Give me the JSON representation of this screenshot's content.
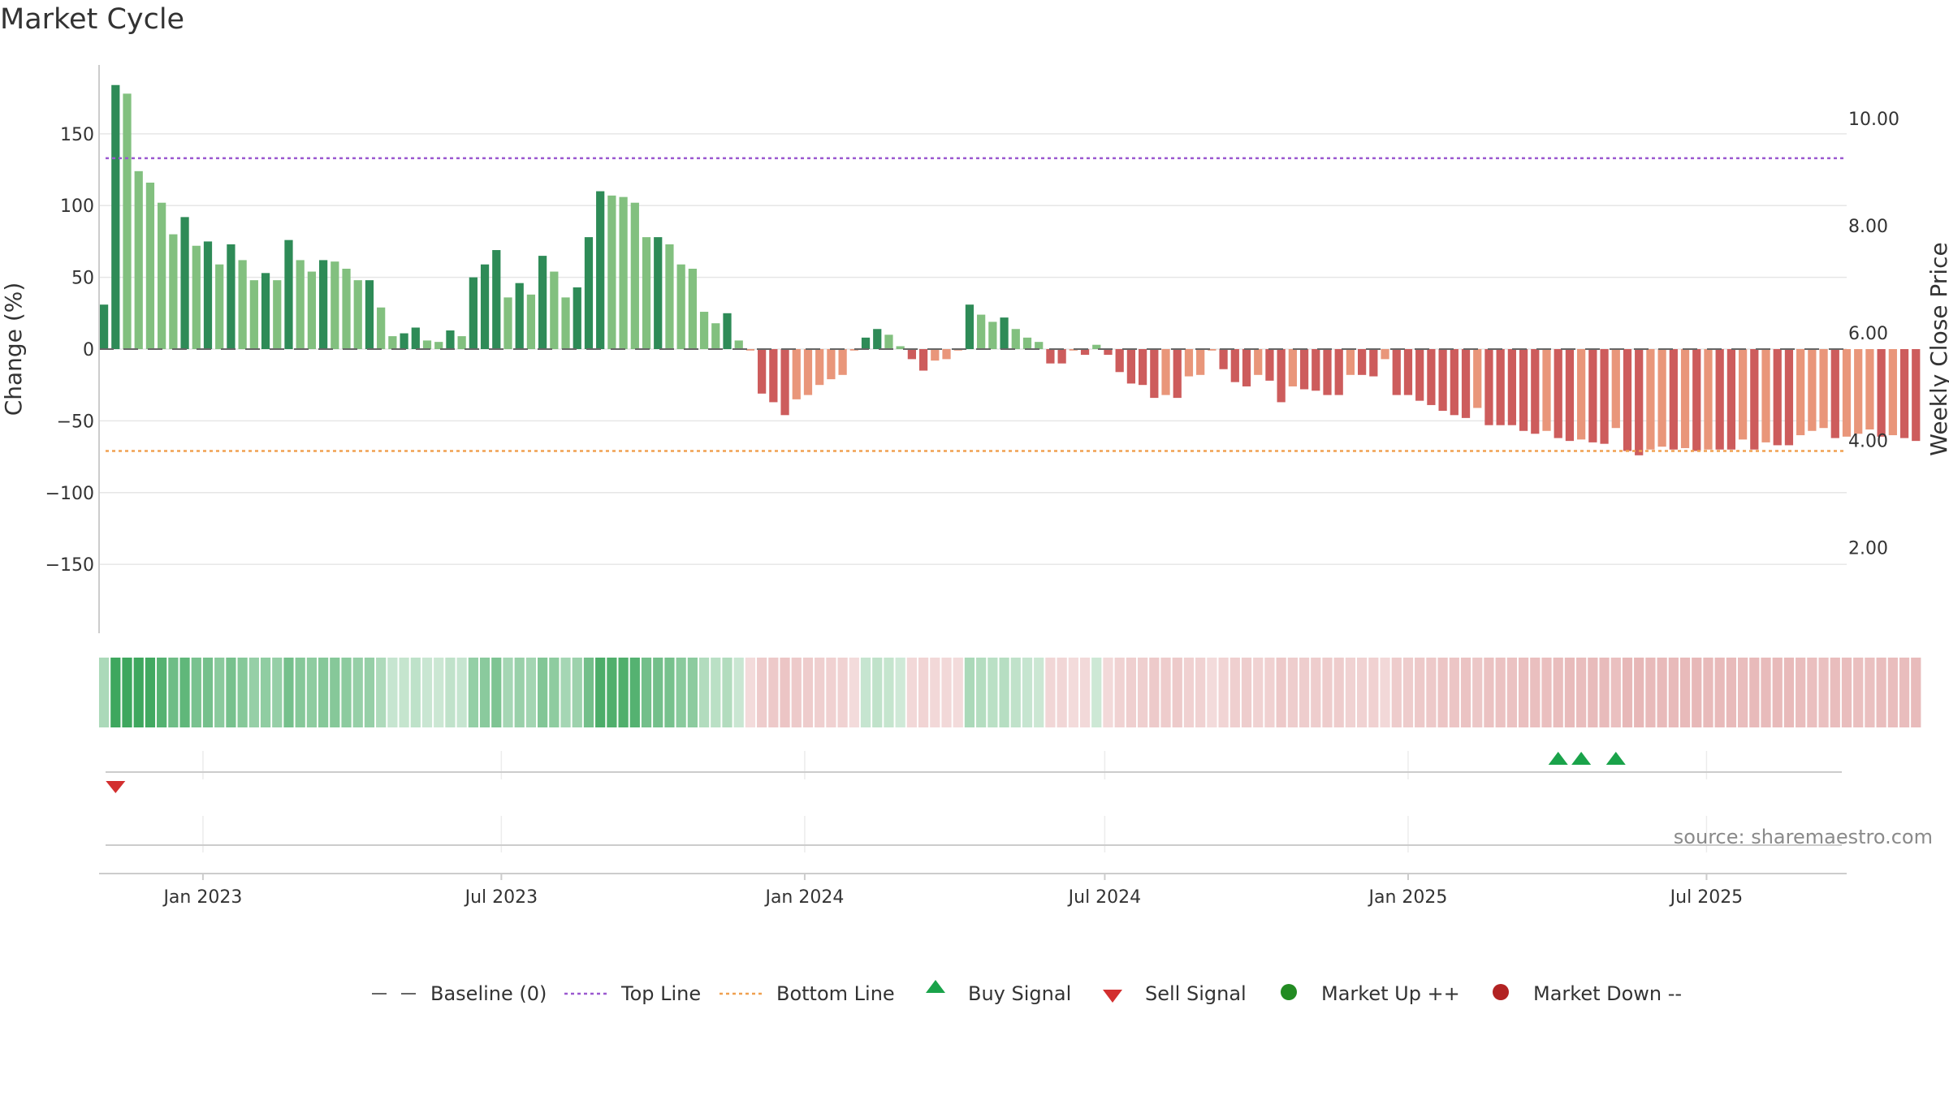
{
  "chart_data": {
    "type": "bar",
    "title": "Market Cycle",
    "ylabel_left": "Change (%)",
    "ylabel_right": "Weekly Close Price",
    "yticks_left": [
      "150",
      "100",
      "50",
      "0",
      "−50",
      "−100",
      "−150"
    ],
    "yticks_left_values": [
      150,
      100,
      50,
      0,
      -50,
      -100,
      -150
    ],
    "yticks_right": [
      "10.00",
      "8.00",
      "6.00",
      "4.00",
      "2.00"
    ],
    "yticks_right_values": [
      10,
      8,
      6,
      4,
      2
    ],
    "ylim_left": [
      -198,
      198
    ],
    "ylim_right": [
      0.4,
      11.0
    ],
    "xlim": [
      "2022-10-30",
      "2025-09-24"
    ],
    "xticks": [
      "Jan 2023",
      "Jul 2023",
      "Jan 2024",
      "Jul 2024",
      "Jan 2025",
      "Jul 2025"
    ],
    "xticks_dates": [
      "2023-01-01",
      "2023-07-01",
      "2024-01-01",
      "2024-07-01",
      "2025-01-01",
      "2025-07-01"
    ],
    "start_week": "2022-11-02",
    "weekly_change": [
      31,
      184,
      178,
      124,
      116,
      102,
      80,
      92,
      72,
      75,
      59,
      73,
      62,
      48,
      53,
      48,
      76,
      62,
      54,
      62,
      61,
      56,
      48,
      48,
      29,
      9,
      11,
      15,
      6,
      5,
      13,
      9,
      50,
      59,
      69,
      36,
      46,
      38,
      65,
      54,
      36,
      43,
      78,
      110,
      107,
      106,
      102,
      78,
      78,
      73,
      59,
      56,
      26,
      18,
      25,
      6,
      -1,
      -31,
      -37,
      -46,
      -35,
      -32,
      -25,
      -21,
      -18,
      -1,
      8,
      14,
      10,
      2,
      -7,
      -15,
      -8,
      -7,
      -1,
      31,
      24,
      19,
      22,
      14,
      8,
      5,
      -10,
      -10,
      -1,
      -4,
      3,
      -4,
      -16,
      -24,
      -25,
      -34,
      -32,
      -34,
      -19,
      -18,
      -1,
      -14,
      -23,
      -26,
      -18,
      -22,
      -37,
      -26,
      -28,
      -29,
      -32,
      -32,
      -18,
      -18,
      -19,
      -7,
      -32,
      -32,
      -36,
      -39,
      -43,
      -46,
      -48,
      -41,
      -53,
      -53,
      -53,
      -57,
      -59,
      -57,
      -62,
      -64,
      -63,
      -65,
      -66,
      -55,
      -71,
      -74,
      -70,
      -68,
      -70,
      -69,
      -71,
      -70,
      -70,
      -70,
      -63,
      -70,
      -65,
      -67,
      -67,
      -60,
      -57,
      -55,
      -62,
      -61,
      -59,
      -56,
      -61,
      -60,
      -62,
      -64
    ],
    "top_line": 133,
    "bottom_line": -71,
    "baseline": 0,
    "buy_signals": [
      "2025-04-02",
      "2025-04-16",
      "2025-05-07"
    ],
    "sell_signals": [
      "2022-11-09"
    ],
    "legend": {
      "placement": "bottom-center",
      "items": [
        {
          "label": "Baseline (0)",
          "style": "dash-gray"
        },
        {
          "label": "Top Line",
          "style": "dotted-purple"
        },
        {
          "label": "Bottom Line",
          "style": "dotted-orange"
        },
        {
          "label": "Buy Signal",
          "style": "triangle-up-green"
        },
        {
          "label": "Sell Signal",
          "style": "triangle-down-red"
        },
        {
          "label": "Market Up ++",
          "style": "circle-green"
        },
        {
          "label": "Market Down --",
          "style": "circle-red"
        }
      ]
    },
    "grid": true,
    "colors": {
      "up_dark": "#2e8b57",
      "up_light": "#82c07f",
      "down_dark": "#cd5c5c",
      "down_light": "#e9967a",
      "top_line": "#9b59d0",
      "bottom_line": "#f0a050",
      "baseline": "#666666",
      "buy": "#1aa34a",
      "sell": "#d32f2f",
      "market_up": "#228b22",
      "market_down": "#b22222"
    }
  },
  "source_text": "source: sharemaestro.com"
}
